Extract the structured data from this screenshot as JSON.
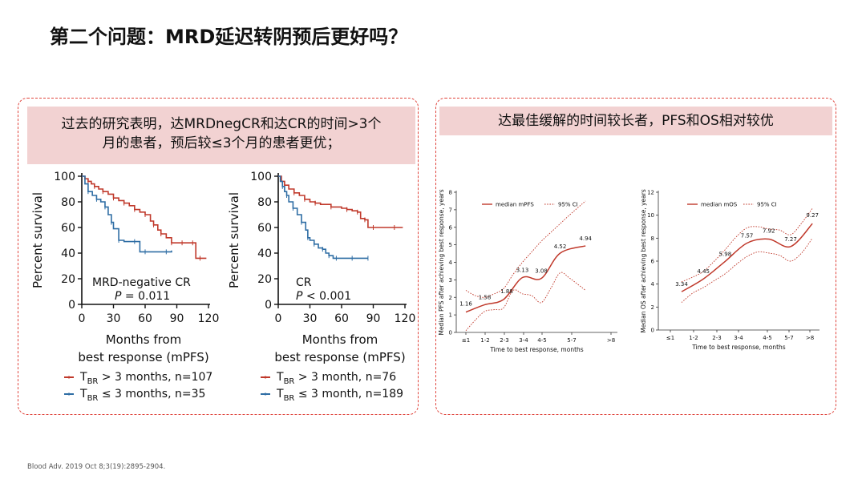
{
  "slide": {
    "title": "第二个问题：MRD延迟转阴预后更好吗？",
    "footer": "Blood Adv. 2019 Oct 8;3(19):2895-2904.",
    "left_banner_line1": "过去的研究表明，达MRDnegCR和达CR的时间>3个",
    "left_banner_line2": "月的患者，预后较≤3个月的患者更优；",
    "right_banner": "达最佳缓解的时间较长者，PFS和OS相对较优"
  },
  "colors": {
    "accent": "#e0443c",
    "banner": "#f2d2d2",
    "series_red": "#c0392b",
    "series_blue": "#2e6da4",
    "ci_red": "#c0392b"
  },
  "chart_data": [
    {
      "type": "line",
      "subtype": "kaplan-meier",
      "panel_label": "MRD-negative CR",
      "p_value": "P = 0.011",
      "xlabel_line1": "Months from",
      "xlabel_line2": "best response (mPFS)",
      "ylabel": "Percent survival",
      "xlim": [
        0,
        120
      ],
      "ylim": [
        0,
        100
      ],
      "xticks": [
        0,
        30,
        60,
        90,
        120
      ],
      "yticks": [
        0,
        20,
        40,
        60,
        80,
        100
      ],
      "legend_placement": "bottom",
      "series": [
        {
          "name": "T_BR > 3 months, n=107",
          "legend_main": "T",
          "legend_sub": "BR",
          "legend_rest": " > 3 months, n=107",
          "color": "#c0392b",
          "x": [
            0,
            3,
            6,
            9,
            12,
            16,
            20,
            25,
            30,
            35,
            40,
            45,
            50,
            55,
            60,
            65,
            68,
            72,
            75,
            80,
            85,
            90,
            95,
            100,
            105,
            108,
            112,
            118
          ],
          "y": [
            100,
            98,
            96,
            94,
            92,
            90,
            88,
            86,
            83,
            81,
            79,
            77,
            74,
            72,
            70,
            65,
            62,
            58,
            55,
            52,
            48,
            48,
            48,
            48,
            48,
            36,
            36,
            36
          ]
        },
        {
          "name": "T_BR ≤ 3 months, n=35",
          "legend_main": "T",
          "legend_sub": "BR",
          "legend_rest": " ≤ 3 months, n=35",
          "color": "#2e6da4",
          "x": [
            0,
            3,
            6,
            10,
            14,
            18,
            22,
            25,
            28,
            30,
            35,
            40,
            50,
            55,
            60,
            70,
            80,
            85
          ],
          "y": [
            100,
            94,
            88,
            85,
            82,
            80,
            76,
            70,
            64,
            59,
            50,
            49,
            49,
            41,
            41,
            41,
            41,
            42
          ]
        }
      ]
    },
    {
      "type": "line",
      "subtype": "kaplan-meier",
      "panel_label": "CR",
      "p_value": "P < 0.001",
      "xlabel_line1": "Months from",
      "xlabel_line2": "best response (mPFS)",
      "ylabel": "Percent survival",
      "xlim": [
        0,
        120
      ],
      "ylim": [
        0,
        100
      ],
      "xticks": [
        0,
        30,
        60,
        90,
        120
      ],
      "yticks": [
        0,
        20,
        40,
        60,
        80,
        100
      ],
      "legend_placement": "bottom",
      "series": [
        {
          "name": "T_BR > 3 month, n=76",
          "legend_main": "T",
          "legend_sub": "BR",
          "legend_rest": " > 3 month, n=76",
          "color": "#c0392b",
          "x": [
            0,
            3,
            6,
            10,
            15,
            20,
            25,
            30,
            35,
            40,
            50,
            60,
            65,
            70,
            75,
            78,
            82,
            85,
            90,
            100,
            110,
            118
          ],
          "y": [
            100,
            96,
            93,
            90,
            87,
            85,
            82,
            80,
            79,
            78,
            76,
            75,
            74,
            73,
            72,
            67,
            66,
            60,
            60,
            60,
            60,
            60
          ]
        },
        {
          "name": "T_BR ≤ 3 month, n=189",
          "legend_main": "T",
          "legend_sub": "BR",
          "legend_rest": " ≤ 3 month, n=189",
          "color": "#2e6da4",
          "x": [
            0,
            2,
            4,
            6,
            8,
            10,
            14,
            18,
            22,
            26,
            28,
            30,
            34,
            38,
            42,
            45,
            48,
            52,
            55,
            60,
            70,
            80,
            85
          ],
          "y": [
            100,
            96,
            92,
            88,
            85,
            80,
            75,
            70,
            64,
            58,
            52,
            50,
            47,
            44,
            43,
            40,
            38,
            36,
            36,
            36,
            36,
            36,
            36
          ]
        }
      ]
    },
    {
      "type": "line",
      "ylabel": "Median PFS after achieving best response, years",
      "xlabel": "Time to best response, months",
      "categories": [
        "≤1",
        "1-2",
        "2-3",
        "3-4",
        "4-5",
        "5-7",
        ">8"
      ],
      "ylim": [
        0,
        8
      ],
      "yticks": [
        0,
        1,
        2,
        3,
        4,
        5,
        6,
        7,
        8
      ],
      "legend_placement": "top-left",
      "series": [
        {
          "name": "median mPFS",
          "x": [
            0,
            1,
            2,
            3,
            4,
            5,
            6.35
          ],
          "values": [
            1.16,
            1.58,
            1.88,
            3.13,
            3.08,
            4.52,
            4.94
          ],
          "labels": [
            "1.16",
            "1.58",
            "1.88",
            "3.13",
            "3.08",
            "4.52",
            "4.94"
          ]
        },
        {
          "name": "95% CI",
          "style": "dotted",
          "upper": {
            "x": [
              0,
              0.5,
              1,
              1.5,
              2,
              2.5,
              3,
              3.5,
              4,
              4.5,
              5,
              5.5,
              6.35
            ],
            "values": [
              2.4,
              2.1,
              2.0,
              2.2,
              2.5,
              3.3,
              4.0,
              4.6,
              5.2,
              5.7,
              6.2,
              6.7,
              7.5
            ]
          },
          "lower": {
            "x": [
              0,
              0.5,
              1,
              1.5,
              2,
              2.5,
              3,
              3.5,
              4,
              4.5,
              5,
              5.5,
              6.35
            ],
            "values": [
              0.1,
              0.7,
              1.2,
              1.3,
              1.4,
              2.4,
              2.2,
              2.1,
              1.7,
              2.5,
              3.4,
              3.1,
              2.4
            ]
          }
        }
      ]
    },
    {
      "type": "line",
      "ylabel": "Median OS after achieving best response, years",
      "xlabel": "Time to best response, months",
      "categories": [
        "≤1",
        "1-2",
        "2-3",
        "3-4",
        "4-5",
        "5-7",
        ">8"
      ],
      "ylim": [
        0,
        12
      ],
      "yticks": [
        0,
        2,
        4,
        6,
        8,
        10,
        12
      ],
      "legend_placement": "top-left",
      "series": [
        {
          "name": "median mOS",
          "x": [
            0,
            1,
            2,
            3,
            4,
            5,
            6
          ],
          "values": [
            3.34,
            4.45,
            5.98,
            7.57,
            7.92,
            7.27,
            9.27
          ],
          "labels": [
            "3.34",
            "4.45",
            "5.98",
            "7.57",
            "7.92",
            "7.27",
            "9.27"
          ]
        },
        {
          "name": "95% CI",
          "style": "dotted",
          "upper": {
            "x": [
              0,
              0.5,
              1,
              1.5,
              2,
              2.5,
              3,
              3.5,
              4,
              4.5,
              5,
              5.5,
              6
            ],
            "values": [
              4.2,
              4.6,
              5.1,
              6.0,
              7.0,
              8.1,
              8.9,
              9.0,
              8.8,
              8.7,
              8.3,
              9.3,
              10.6
            ]
          },
          "lower": {
            "x": [
              0,
              0.5,
              1,
              1.5,
              2,
              2.5,
              3,
              3.5,
              4,
              4.5,
              5,
              5.5,
              6
            ],
            "values": [
              2.4,
              3.2,
              3.7,
              4.3,
              4.9,
              5.7,
              6.4,
              6.8,
              6.7,
              6.5,
              6.0,
              6.7,
              8.0
            ]
          }
        }
      ]
    }
  ]
}
